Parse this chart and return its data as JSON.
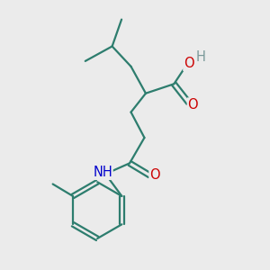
{
  "bg_color": "#ebebeb",
  "bond_color": "#2d7d6e",
  "bond_width": 1.6,
  "atom_colors": {
    "O": "#cc0000",
    "N": "#0000cc",
    "H": "#7a9a9a",
    "C": "#2d7d6e"
  },
  "font_size_atom": 10.5,
  "font_size_h": 10.5
}
